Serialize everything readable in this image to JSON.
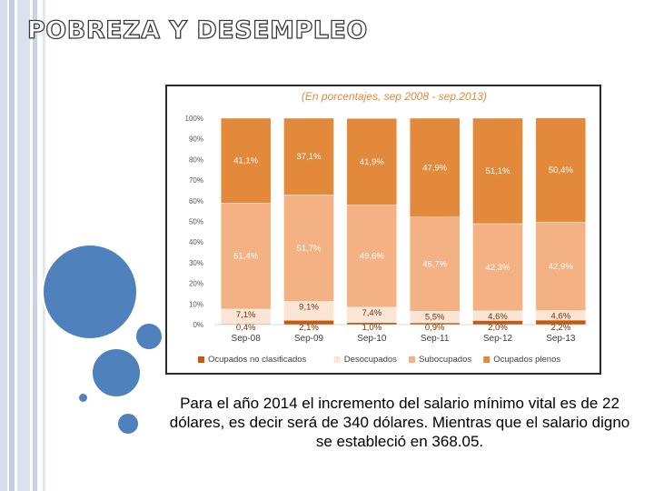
{
  "slide": {
    "title": "POBREZA Y DESEMPLEO",
    "caption": "Para el año 2014 el incremento del salario mínimo vital es de 22 dólares, es decir será de 340 dólares. Mientras que el salario digno se estableció en 368.05."
  },
  "colors": {
    "ocupados_no_clasificados": "#c55a11",
    "desocupados": "#fbe5d6",
    "subocupados": "#f4b183",
    "ocupados_plenos": "#e2893b",
    "bubble": "#4f81bd",
    "stripe": "#c9d3e6"
  },
  "chart_data": {
    "type": "bar",
    "stacked": true,
    "title": "(En porcentajes, sep 2008 - sep.2013)",
    "categories": [
      "Sep-08",
      "Sep-09",
      "Sep-10",
      "Sep-11",
      "Sep-12",
      "Sep-13"
    ],
    "y_ticks": [
      "0%",
      "10%",
      "20%",
      "30%",
      "40%",
      "50%",
      "60%",
      "70%",
      "80%",
      "90%",
      "100%"
    ],
    "ylim": [
      0,
      100
    ],
    "legend_position": "bottom",
    "series": [
      {
        "name": "Ocupados no clasificados",
        "color": "#c55a11",
        "values": [
          0.4,
          2.1,
          1.0,
          0.9,
          2.0,
          2.2
        ],
        "labels": [
          "0,4%",
          "2,1%",
          "1,0%",
          "0,9%",
          "2,0%",
          "2,2%"
        ]
      },
      {
        "name": "Desocupados",
        "color": "#fbe5d6",
        "values": [
          7.1,
          9.1,
          7.4,
          5.5,
          4.6,
          4.6
        ],
        "labels": [
          "7,1%",
          "9,1%",
          "7,4%",
          "5,5%",
          "4,6%",
          "4,6%"
        ]
      },
      {
        "name": "Subocupados",
        "color": "#f4b183",
        "values": [
          51.4,
          51.7,
          49.6,
          45.7,
          42.3,
          42.9
        ],
        "labels": [
          "51,4%",
          "51,7%",
          "49,6%",
          "45,7%",
          "42,3%",
          "42,9%"
        ]
      },
      {
        "name": "Ocupados plenos",
        "color": "#e2893b",
        "values": [
          41.1,
          37.1,
          41.9,
          47.9,
          51.1,
          50.4
        ],
        "labels": [
          "41,1%",
          "37,1%",
          "41,9%",
          "47,9%",
          "51,1%",
          "50,4%"
        ]
      }
    ]
  }
}
